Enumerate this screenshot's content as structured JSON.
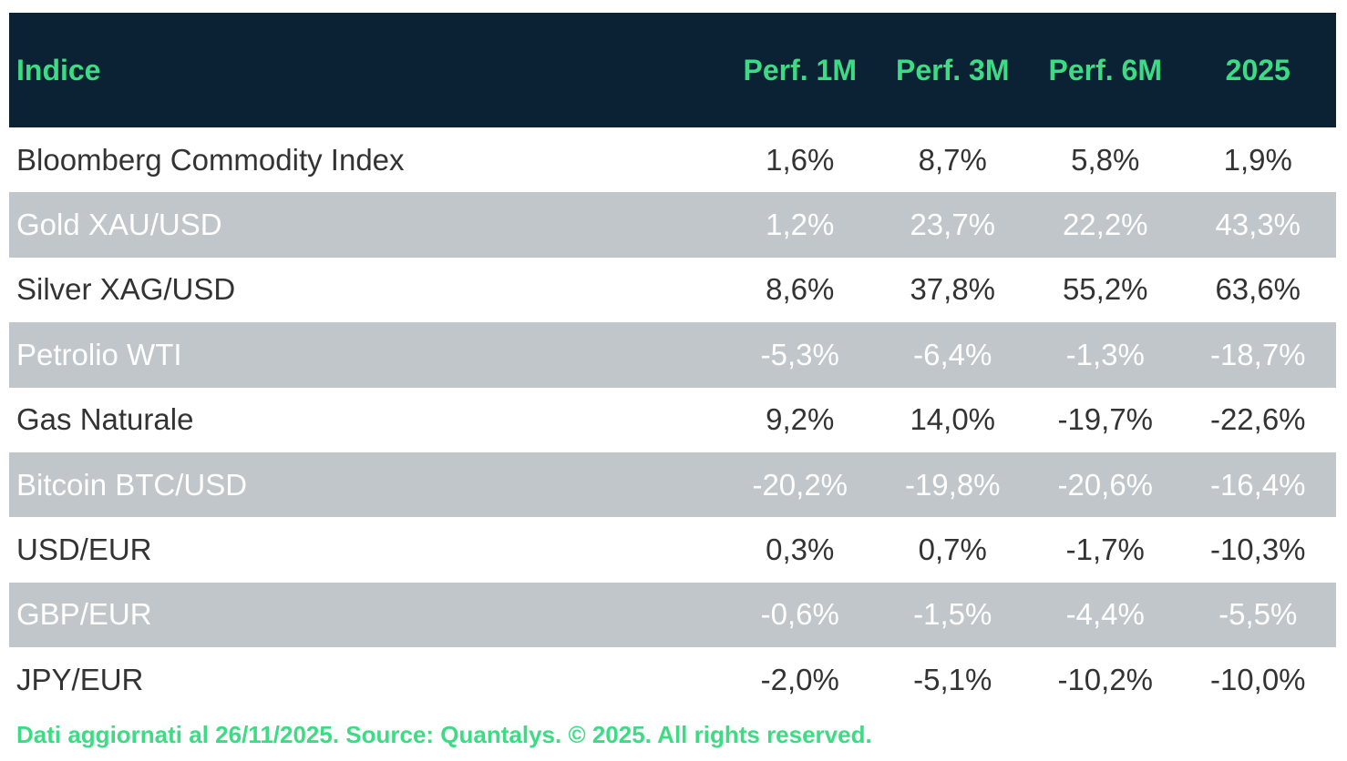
{
  "table": {
    "header": [
      "Indice",
      "Perf. 1M",
      "Perf. 3M",
      "Perf. 6M",
      "2025"
    ],
    "rows": [
      [
        "Bloomberg Commodity Index",
        "1,6%",
        "8,7%",
        "5,8%",
        "1,9%"
      ],
      [
        "Gold XAU/USD",
        "1,2%",
        "23,7%",
        "22,2%",
        "43,3%"
      ],
      [
        "Silver XAG/USD",
        "8,6%",
        "37,8%",
        "55,2%",
        "63,6%"
      ],
      [
        "Petrolio WTI",
        "-5,3%",
        "-6,4%",
        "-1,3%",
        "-18,7%"
      ],
      [
        "Gas Naturale",
        "9,2%",
        "14,0%",
        "-19,7%",
        "-22,6%"
      ],
      [
        "Bitcoin BTC/USD",
        "-20,2%",
        "-19,8%",
        "-20,6%",
        "-16,4%"
      ],
      [
        "USD/EUR",
        "0,3%",
        "0,7%",
        "-1,7%",
        "-10,3%"
      ],
      [
        "GBP/EUR",
        "-0,6%",
        "-1,5%",
        "-4,4%",
        "-5,5%"
      ],
      [
        "JPY/EUR",
        "-2,0%",
        "-5,1%",
        "-10,2%",
        "-10,0%"
      ]
    ]
  },
  "footer": "Dati aggiornati al 26/11/2025. Source: Quantalys. © 2025. All rights reserved."
}
